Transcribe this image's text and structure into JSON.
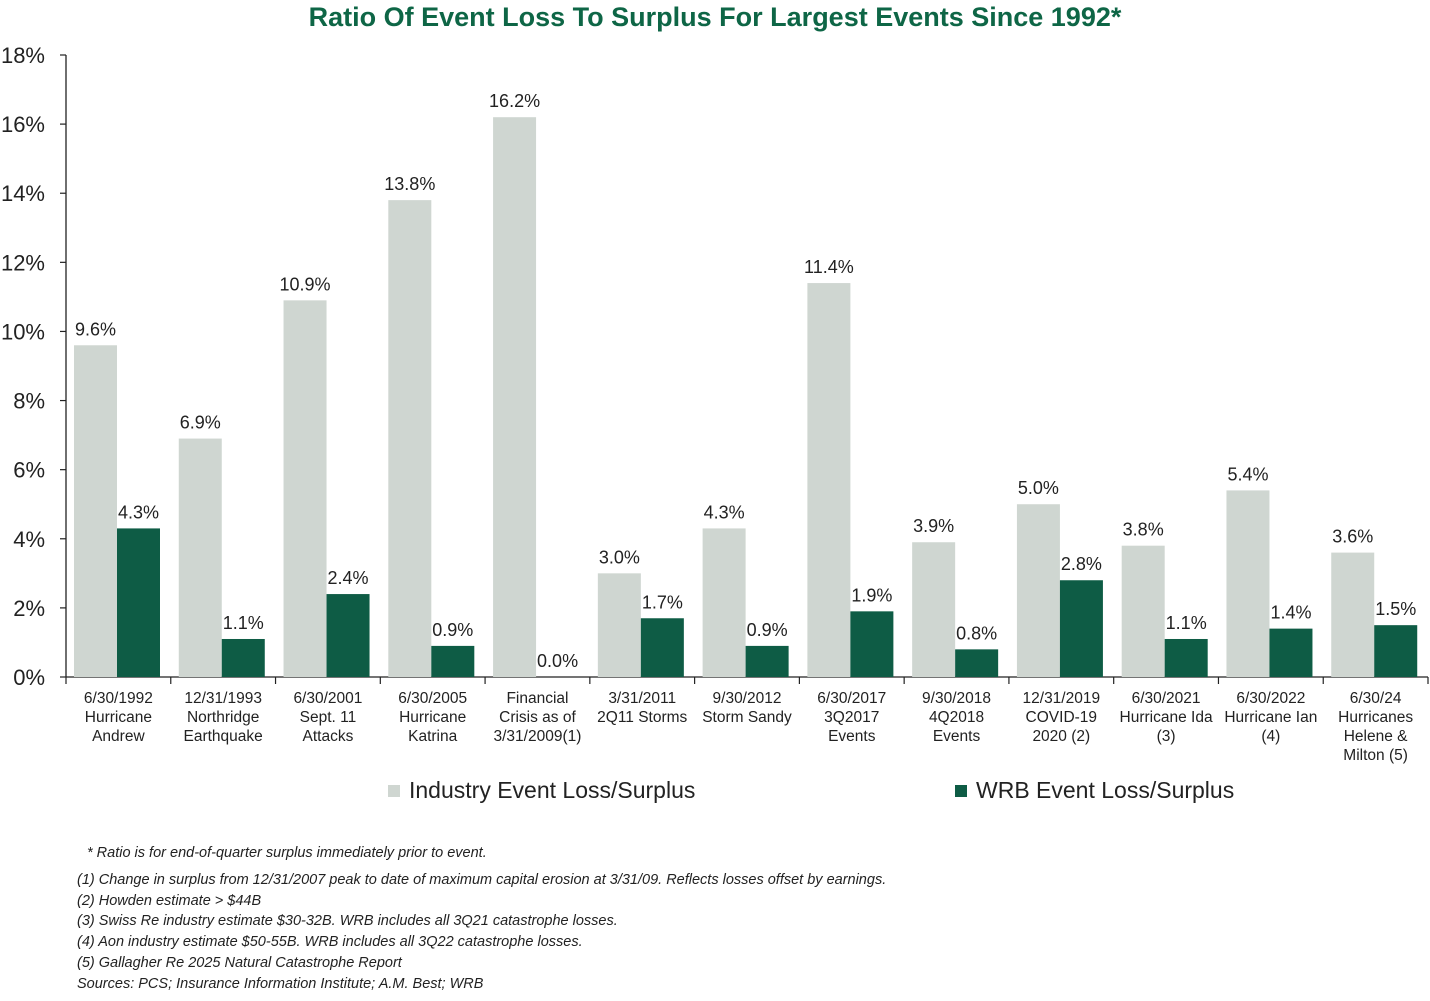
{
  "chart_data": {
    "type": "bar",
    "title": "Ratio Of Event Loss To Surplus For Largest Events Since 1992*",
    "xlabel": "",
    "ylabel": "",
    "ylim": [
      0,
      18
    ],
    "yticks": [
      "0%",
      "2%",
      "4%",
      "6%",
      "8%",
      "10%",
      "12%",
      "14%",
      "16%",
      "18%"
    ],
    "categories": [
      [
        "6/30/1992",
        "Hurricane",
        "Andrew"
      ],
      [
        "12/31/1993",
        "Northridge",
        "Earthquake"
      ],
      [
        "6/30/2001",
        "Sept. 11",
        "Attacks"
      ],
      [
        "6/30/2005",
        "Hurricane",
        "Katrina"
      ],
      [
        "Financial",
        "Crisis as of",
        "3/31/2009(1)"
      ],
      [
        "3/31/2011",
        "2Q11 Storms"
      ],
      [
        "9/30/2012",
        "Storm Sandy"
      ],
      [
        "6/30/2017",
        "3Q2017",
        "Events"
      ],
      [
        "9/30/2018",
        "4Q2018",
        "Events"
      ],
      [
        "12/31/2019",
        "COVID-19",
        "2020 (2)"
      ],
      [
        "6/30/2021",
        "Hurricane Ida",
        "(3)"
      ],
      [
        "6/30/2022",
        "Hurricane Ian",
        "(4)"
      ],
      [
        "6/30/24",
        "Hurricanes",
        "Helene &",
        "Milton (5)"
      ]
    ],
    "series": [
      {
        "name": "Industry Event Loss/Surplus",
        "color": "#cfd6d1",
        "values": [
          9.6,
          6.9,
          10.9,
          13.8,
          16.2,
          3.0,
          4.3,
          11.4,
          3.9,
          5.0,
          3.8,
          5.4,
          3.6
        ],
        "labels": [
          "9.6%",
          "6.9%",
          "10.9%",
          "13.8%",
          "16.2%",
          "3.0%",
          "4.3%",
          "11.4%",
          "3.9%",
          "5.0%",
          "3.8%",
          "5.4%",
          "3.6%"
        ]
      },
      {
        "name": "WRB Event Loss/Surplus",
        "color": "#0e5c45",
        "values": [
          4.3,
          1.1,
          2.4,
          0.9,
          0.0,
          1.7,
          0.9,
          1.9,
          0.8,
          2.8,
          1.1,
          1.4,
          1.5
        ],
        "labels": [
          "4.3%",
          "1.1%",
          "2.4%",
          "0.9%",
          "0.0%",
          "1.7%",
          "0.9%",
          "1.9%",
          "0.8%",
          "2.8%",
          "1.1%",
          "1.4%",
          "1.5%"
        ]
      }
    ],
    "legend": "bottom",
    "grid": false
  },
  "footnotes": [
    "* Ratio is for end-of-quarter surplus immediately prior to event.",
    "(1) Change in surplus from 12/31/2007 peak to date of maximum capital erosion at 3/31/09. Reflects losses offset by earnings.",
    "(2) Howden estimate > $44B",
    "(3) Swiss Re industry estimate $30-32B. WRB includes all 3Q21 catastrophe losses.",
    "(4) Aon industry estimate $50-55B. WRB includes all 3Q22 catastrophe losses.",
    "(5) Gallagher Re 2025 Natural Catastrophe Report",
    "Sources: PCS; Insurance Information Institute; A.M. Best; WRB"
  ]
}
